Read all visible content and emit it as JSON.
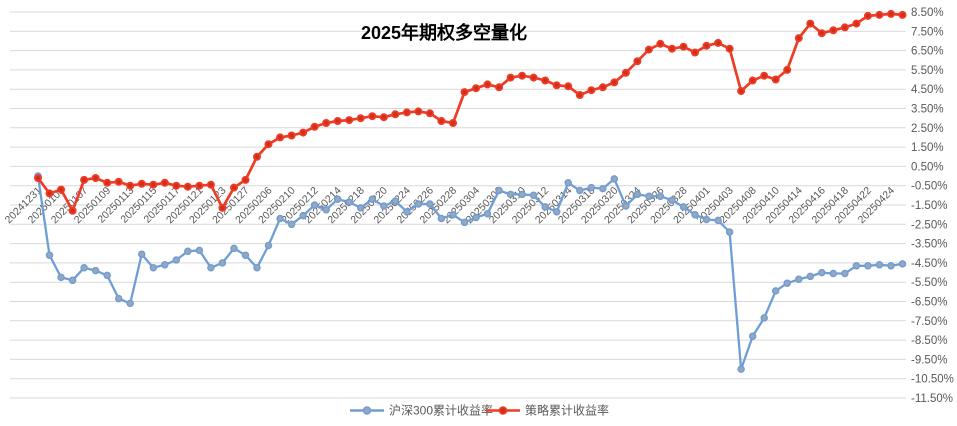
{
  "chart_data": {
    "type": "line",
    "title": "2025年期权多空量化",
    "xlabel": "",
    "ylabel": "",
    "ylim": [
      -11.5,
      8.5
    ],
    "y_tick_step": 1.0,
    "y_tick_labels": [
      "8.50%",
      "7.50%",
      "6.50%",
      "5.50%",
      "4.50%",
      "3.50%",
      "2.50%",
      "1.50%",
      "0.50%",
      "-0.50%",
      "-1.50%",
      "-2.50%",
      "-3.50%",
      "-4.50%",
      "-5.50%",
      "-6.50%",
      "-7.50%",
      "-8.50%",
      "-9.50%",
      "-10.50%",
      "-11.50%"
    ],
    "y_axis_side": "right",
    "grid": true,
    "legend_position": "bottom",
    "x_tick_step": 2,
    "x": [
      "20241231",
      "20250102",
      "20250103",
      "20250106",
      "20250107",
      "20250108",
      "20250109",
      "20250110",
      "20250113",
      "20250114",
      "20250115",
      "20250116",
      "20250117",
      "20250120",
      "20250121",
      "20250122",
      "20250123",
      "20250124",
      "20250127",
      "20250205",
      "20250206",
      "20250207",
      "20250210",
      "20250211",
      "20250212",
      "20250213",
      "20250214",
      "20250217",
      "20250218",
      "20250219",
      "20250220",
      "20250221",
      "20250224",
      "20250225",
      "20250226",
      "20250227",
      "20250228",
      "20250303",
      "20250304",
      "20250305",
      "20250306",
      "20250307",
      "20250310",
      "20250311",
      "20250312",
      "20250313",
      "20250314",
      "20250317",
      "20250318",
      "20250319",
      "20250320",
      "20250321",
      "20250324",
      "20250325",
      "20250326",
      "20250327",
      "20250328",
      "20250331",
      "20250401",
      "20250402",
      "20250403",
      "20250407",
      "20250408",
      "20250409",
      "20250410",
      "20250411",
      "20250414",
      "20250415",
      "20250416",
      "20250417",
      "20250418",
      "20250421",
      "20250422",
      "20250423",
      "20250424",
      "20250425"
    ],
    "series": [
      {
        "name": "沪深300累计收益率",
        "color": "#6f9ed7",
        "marker_fill": "#9ba7b4",
        "values": [
          0.0,
          -4.1,
          -5.25,
          -5.4,
          -4.75,
          -4.9,
          -5.15,
          -6.35,
          -6.6,
          -4.05,
          -4.75,
          -4.6,
          -4.35,
          -3.9,
          -3.85,
          -4.75,
          -4.5,
          -3.75,
          -4.1,
          -4.75,
          -3.6,
          -2.2,
          -2.5,
          -2.05,
          -1.5,
          -1.75,
          -1.2,
          -1.35,
          -1.65,
          -1.2,
          -1.55,
          -1.3,
          -1.85,
          -1.45,
          -1.45,
          -2.2,
          -2.0,
          -2.4,
          -2.15,
          -1.95,
          -0.75,
          -0.95,
          -0.95,
          -1.0,
          -1.6,
          -1.85,
          -0.35,
          -0.75,
          -0.6,
          -0.65,
          -0.15,
          -1.55,
          -0.95,
          -1.05,
          -1.05,
          -1.25,
          -1.6,
          -2.0,
          -2.25,
          -2.3,
          -2.9,
          -10.0,
          -8.3,
          -7.35,
          -5.95,
          -5.55,
          -5.35,
          -5.2,
          -5.0,
          -5.05,
          -5.05,
          -4.65,
          -4.65,
          -4.6,
          -4.65,
          -4.55
        ]
      },
      {
        "name": "策略累计收益率",
        "color": "#ee3c26",
        "marker_fill": "#d22f1b",
        "values": [
          -0.1,
          -0.9,
          -0.7,
          -1.8,
          -0.2,
          -0.1,
          -0.35,
          -0.3,
          -0.5,
          -0.4,
          -0.45,
          -0.35,
          -0.5,
          -0.55,
          -0.5,
          -0.45,
          -1.65,
          -0.6,
          -0.2,
          1.0,
          1.65,
          2.0,
          2.1,
          2.25,
          2.55,
          2.75,
          2.85,
          2.9,
          3.0,
          3.1,
          3.05,
          3.2,
          3.3,
          3.35,
          3.25,
          2.85,
          2.75,
          4.35,
          4.55,
          4.75,
          4.6,
          5.1,
          5.2,
          5.1,
          4.95,
          4.7,
          4.65,
          4.2,
          4.45,
          4.6,
          4.85,
          5.35,
          5.95,
          6.55,
          6.85,
          6.6,
          6.7,
          6.4,
          6.75,
          6.9,
          6.6,
          4.4,
          4.95,
          5.2,
          5.0,
          5.5,
          7.15,
          7.9,
          7.4,
          7.55,
          7.7,
          7.9,
          8.3,
          8.35,
          8.4,
          8.35
        ]
      }
    ],
    "colors": {
      "grid": "#d9d9d9",
      "tick_text": "#595959",
      "title_text": "#000000"
    }
  }
}
